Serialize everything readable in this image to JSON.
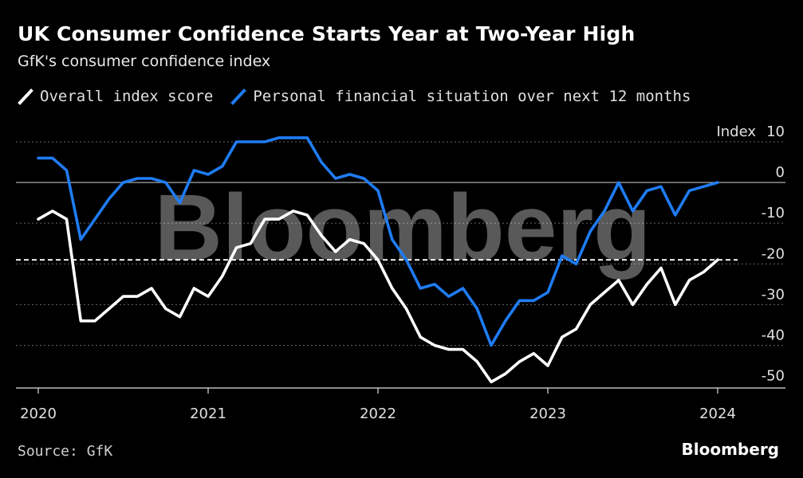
{
  "header": {
    "title": "UK Consumer Confidence Starts Year at Two-Year High",
    "subtitle": "GfK's consumer confidence index"
  },
  "legend": [
    {
      "label": "Overall index score",
      "color": "#ffffff"
    },
    {
      "label": "Personal financial situation over next 12 months",
      "color": "#1f7cf4"
    }
  ],
  "footer": {
    "source": "Source: GfK",
    "brand": "Bloomberg",
    "watermark": "Bloomberg"
  },
  "chart_data": {
    "type": "line",
    "title": "UK Consumer Confidence Starts Year at Two-Year High",
    "subtitle": "GfK's consumer confidence index",
    "ylabel": "Index",
    "ylim": [
      -50,
      10
    ],
    "y_ticks": [
      10,
      0,
      -10,
      -20,
      -30,
      -40,
      -50
    ],
    "y_unit_label": "Index",
    "x_ticks": [
      "2020",
      "2021",
      "2022",
      "2023",
      "2024"
    ],
    "x_start": "2020-01",
    "reference_line": {
      "value": -19,
      "style": "dashed"
    },
    "series": [
      {
        "name": "Overall index score",
        "color": "#ffffff",
        "values": [
          -9,
          -7,
          -9,
          -34,
          -34,
          -31,
          -28,
          -28,
          -26,
          -31,
          -33,
          -26,
          -28,
          -23,
          -16,
          -15,
          -9,
          -9,
          -7,
          -8,
          -13,
          -17,
          -14,
          -15,
          -19,
          -26,
          -31,
          -38,
          -40,
          -41,
          -41,
          -44,
          -49,
          -47,
          -44,
          -42,
          -45,
          -38,
          -36,
          -30,
          -27,
          -24,
          -30,
          -25,
          -21,
          -30,
          -24,
          -22,
          -19
        ]
      },
      {
        "name": "Personal financial situation over next 12 months",
        "color": "#1f7cf4",
        "values": [
          6,
          6,
          3,
          -14,
          -9,
          -4,
          0,
          1,
          1,
          0,
          -5,
          3,
          2,
          4,
          10,
          10,
          10,
          11,
          11,
          11,
          5,
          1,
          2,
          1,
          -2,
          -14,
          -19,
          -26,
          -25,
          -28,
          -26,
          -31,
          -40,
          -34,
          -29,
          -29,
          -27,
          -18,
          -20,
          -12,
          -7,
          0,
          -7,
          -2,
          -1,
          -8,
          -2,
          -1,
          0
        ]
      }
    ]
  }
}
